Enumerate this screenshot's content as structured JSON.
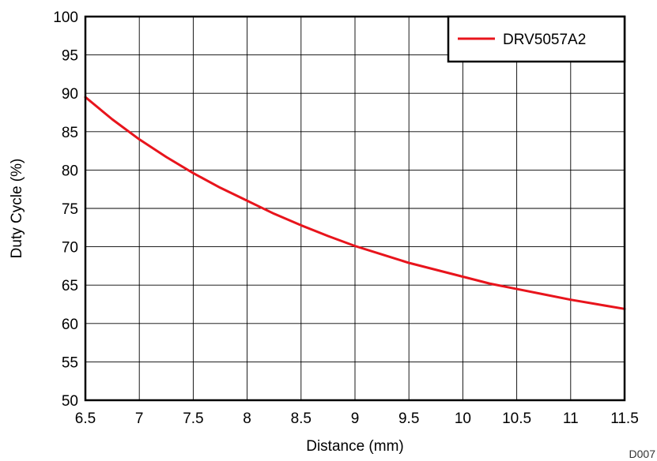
{
  "chart_data": {
    "type": "line",
    "title": "",
    "xlabel": "Distance (mm)",
    "ylabel": "Duty Cycle (%)",
    "xlim": [
      6.5,
      11.5
    ],
    "ylim": [
      50,
      100
    ],
    "xticks": [
      "6.5",
      "7",
      "7.5",
      "8",
      "8.5",
      "9",
      "9.5",
      "10",
      "10.5",
      "11",
      "11.5"
    ],
    "yticks": [
      "50",
      "55",
      "60",
      "65",
      "70",
      "75",
      "80",
      "85",
      "90",
      "95",
      "100"
    ],
    "grid": true,
    "legend_position": "top-right",
    "series": [
      {
        "name": "DRV5057A2",
        "color": "#e8141c",
        "x": [
          6.5,
          6.75,
          7.0,
          7.25,
          7.5,
          7.75,
          8.0,
          8.25,
          8.5,
          8.75,
          9.0,
          9.25,
          9.5,
          9.75,
          10.0,
          10.25,
          10.5,
          10.75,
          11.0,
          11.25,
          11.5
        ],
        "y": [
          89.5,
          86.6,
          84.0,
          81.7,
          79.6,
          77.7,
          76.0,
          74.3,
          72.8,
          71.4,
          70.1,
          69.0,
          67.9,
          67.0,
          66.1,
          65.2,
          64.5,
          63.8,
          63.1,
          62.5,
          61.9
        ]
      }
    ]
  },
  "figure_id": "D007"
}
